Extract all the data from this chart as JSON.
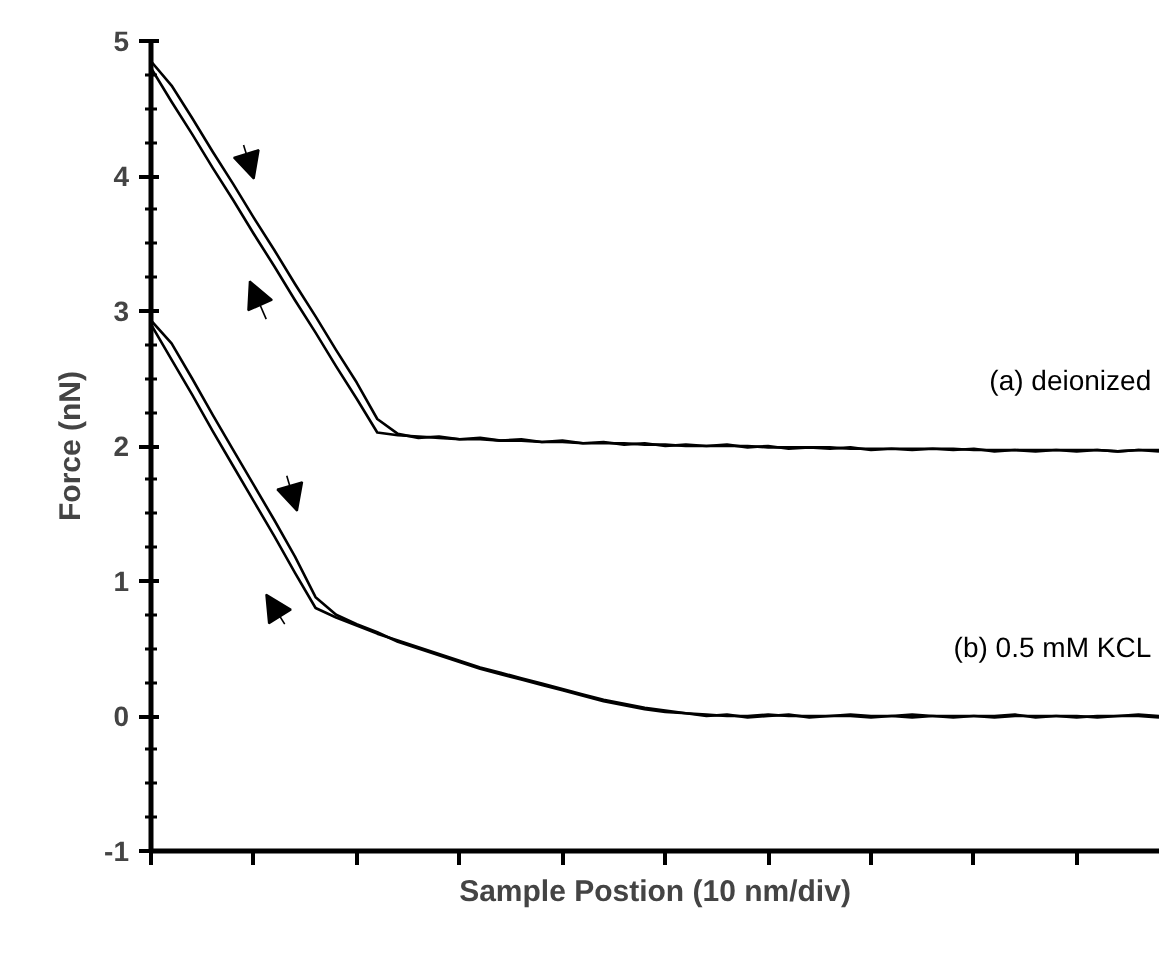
{
  "chart_data": {
    "type": "line",
    "xlabel": "Sample Postion (10 nm/div)",
    "ylabel": "Force (nN)",
    "categories": [
      null,
      null,
      null,
      null,
      null,
      null,
      null,
      null,
      null,
      null,
      null,
      null,
      null,
      null,
      null,
      null,
      null,
      null,
      null,
      null,
      null,
      null,
      null,
      null,
      null,
      null,
      null,
      null,
      null,
      null,
      null,
      null,
      null,
      null,
      null,
      null,
      null,
      null,
      null,
      null,
      null,
      null,
      null,
      null,
      null,
      null,
      null,
      null,
      null,
      null
    ],
    "series": [
      {
        "color": "#000000",
        "values": [
          4.8,
          4.55,
          4.31,
          4.06,
          3.82,
          3.57,
          3.33,
          3.08,
          2.84,
          2.59,
          2.35,
          2.1,
          2.08,
          2.07,
          2.06,
          2.05,
          2.05,
          2.04,
          2.04,
          2.03,
          2.03,
          2.02,
          2.02,
          2.02,
          2.01,
          2.01,
          2.0,
          2.0,
          2.0,
          2.0,
          1.99,
          1.99,
          1.99,
          1.99,
          1.98,
          1.98,
          1.98,
          1.98,
          1.98,
          1.98,
          1.97,
          1.97,
          1.97,
          1.97,
          1.97,
          1.97,
          1.97,
          1.96,
          1.97,
          1.97
        ]
      },
      {
        "color": "#000000",
        "values": [
          4.85,
          4.67,
          4.43,
          4.18,
          3.94,
          3.69,
          3.45,
          3.2,
          2.96,
          2.71,
          2.47,
          2.2,
          2.09,
          2.06,
          2.07,
          2.05,
          2.06,
          2.04,
          2.05,
          2.03,
          2.04,
          2.02,
          2.03,
          2.01,
          2.02,
          2.0,
          2.01,
          2.0,
          2.01,
          1.99,
          2.0,
          1.98,
          1.99,
          1.98,
          1.99,
          1.97,
          1.98,
          1.97,
          1.98,
          1.97,
          1.98,
          1.96,
          1.97,
          1.96,
          1.97,
          1.96,
          1.97,
          1.96,
          1.97,
          1.96
        ]
      },
      {
        "color": "#000000",
        "values": [
          2.9,
          2.64,
          2.38,
          2.11,
          1.85,
          1.59,
          1.33,
          1.06,
          0.8,
          0.73,
          0.67,
          0.61,
          0.56,
          0.51,
          0.46,
          0.41,
          0.36,
          0.32,
          0.28,
          0.24,
          0.2,
          0.16,
          0.12,
          0.09,
          0.06,
          0.04,
          0.02,
          0.01,
          0.0,
          0.0,
          0.01,
          0.0,
          0.0,
          0.0,
          0.01,
          0.0,
          0.0,
          -0.01,
          0.0,
          0.0,
          0.0,
          -0.01,
          0.0,
          0.0,
          0.0,
          -0.01,
          0.0,
          0.0,
          0.0,
          -0.01
        ]
      },
      {
        "color": "#000000",
        "values": [
          2.93,
          2.76,
          2.5,
          2.23,
          1.97,
          1.71,
          1.45,
          1.18,
          0.88,
          0.75,
          0.68,
          0.62,
          0.55,
          0.5,
          0.45,
          0.4,
          0.35,
          0.31,
          0.27,
          0.23,
          0.19,
          0.15,
          0.11,
          0.08,
          0.05,
          0.03,
          0.02,
          0.0,
          0.01,
          -0.01,
          0.0,
          0.01,
          -0.01,
          0.0,
          0.0,
          -0.01,
          0.0,
          0.01,
          0.0,
          -0.01,
          0.0,
          0.0,
          0.01,
          -0.01,
          0.0,
          0.0,
          -0.01,
          0.0,
          0.01,
          0.0
        ]
      }
    ],
    "ylim": [
      -1,
      5
    ],
    "yticks": [
      -1,
      0,
      1,
      2,
      3,
      4,
      5
    ],
    "grid": false,
    "marker": "none",
    "line_style": "solid",
    "annotations": [
      "(a)  deionized",
      "(b)  0.5 mM KCL"
    ]
  }
}
